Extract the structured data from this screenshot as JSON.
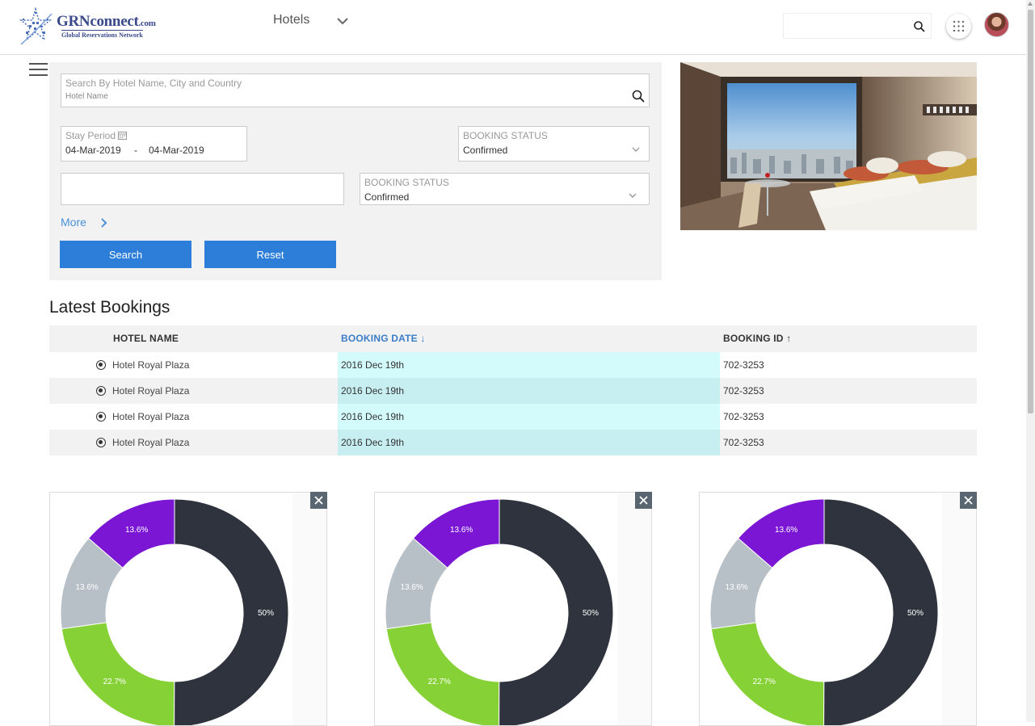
{
  "header": {
    "logo_text": "GRNconnect",
    "logo_domain": ".com",
    "logo_tagline": "Global Reservations Network",
    "product_label": "Hotels",
    "search_placeholder": ""
  },
  "search_form": {
    "hotel_search_label": "Search By Hotel Name, City and Country",
    "hotel_search_sub": "Hotel Name",
    "stay_period_label": "Stay Period",
    "date_from": "04-Mar-2019",
    "date_separator": "-",
    "date_to": "04-Mar-2019",
    "status1_label": "BOOKING STATUS",
    "status1_value": "Confirmed",
    "status2_label": "BOOKING STATUS",
    "status2_value": "Confirmed",
    "more_label": "More",
    "search_button": "Search",
    "reset_button": "Reset"
  },
  "latest_bookings": {
    "title": "Latest Bookings",
    "columns": {
      "hotel": "HOTEL NAME",
      "date": "BOOKING DATE",
      "date_sort": "↓",
      "id": "BOOKING ID",
      "id_sort": "↑"
    },
    "rows": [
      {
        "hotel": "Hotel Royal Plaza",
        "date": "2016 Dec 19th",
        "id": "702-3253"
      },
      {
        "hotel": "Hotel Royal Plaza",
        "date": "2016 Dec 19th",
        "id": "702-3253"
      },
      {
        "hotel": "Hotel Royal Plaza",
        "date": "2016 Dec 19th",
        "id": "702-3253"
      },
      {
        "hotel": "Hotel Royal Plaza",
        "date": "2016 Dec 19th",
        "id": "702-3253"
      }
    ]
  },
  "colors": {
    "accent": "#2d7ed8",
    "dark": "#2e333d",
    "green": "#86d135",
    "grey": "#b7c0c7",
    "purple": "#7a16d4"
  },
  "chart_data": [
    {
      "type": "pie",
      "labels": [
        "50%",
        "22.7%",
        "13.6%",
        "13.6%"
      ],
      "values": [
        50,
        22.7,
        13.6,
        13.6
      ],
      "colors": [
        "#2e333d",
        "#86d135",
        "#b7c0c7",
        "#7a16d4"
      ]
    },
    {
      "type": "pie",
      "labels": [
        "50%",
        "22.7%",
        "13.6%",
        "13.6%"
      ],
      "values": [
        50,
        22.7,
        13.6,
        13.6
      ],
      "colors": [
        "#2e333d",
        "#86d135",
        "#b7c0c7",
        "#7a16d4"
      ]
    },
    {
      "type": "pie",
      "labels": [
        "50%",
        "22.7%",
        "13.6%",
        "13.6%"
      ],
      "values": [
        50,
        22.7,
        13.6,
        13.6
      ],
      "colors": [
        "#2e333d",
        "#86d135",
        "#b7c0c7",
        "#7a16d4"
      ]
    }
  ]
}
